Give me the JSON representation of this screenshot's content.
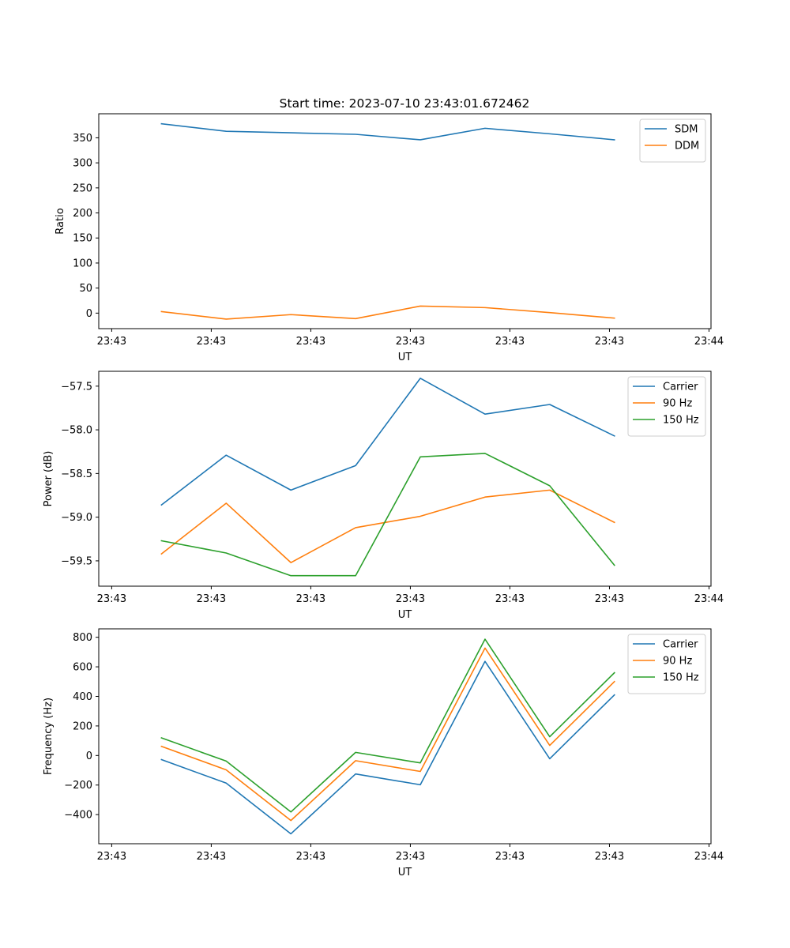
{
  "figure": {
    "title": "Start time: 2023-07-10 23:43:01.672462"
  },
  "chart_data": [
    {
      "type": "line",
      "title": "Start time: 2023-07-10 23:43:01.672462",
      "xlabel": "UT",
      "ylabel": "Ratio",
      "x_tick_labels": [
        "23:43",
        "23:43",
        "23:43",
        "23:43",
        "23:43",
        "23:43",
        "23:44"
      ],
      "x_tick_positions": [
        0,
        1,
        2,
        3,
        4,
        5,
        6
      ],
      "x_points": [
        0.5,
        1.15,
        1.8,
        2.45,
        3.1,
        3.75,
        4.4,
        5.05
      ],
      "xlim": [
        -0.13,
        6.02
      ],
      "ylim": [
        -31,
        398
      ],
      "y_ticks": [
        0,
        50,
        100,
        150,
        200,
        250,
        300,
        350
      ],
      "grid": false,
      "legend_position": "top-right",
      "series": [
        {
          "name": "SDM",
          "color": "#1f77b4",
          "values": [
            378,
            363,
            360,
            357,
            346,
            369,
            358,
            346
          ]
        },
        {
          "name": "DDM",
          "color": "#ff7f0e",
          "values": [
            3,
            -12,
            -3,
            -11,
            14,
            11,
            1,
            -10
          ]
        }
      ]
    },
    {
      "type": "line",
      "title": "",
      "xlabel": "UT",
      "ylabel": "Power (dB)",
      "x_tick_labels": [
        "23:43",
        "23:43",
        "23:43",
        "23:43",
        "23:43",
        "23:43",
        "23:44"
      ],
      "x_tick_positions": [
        0,
        1,
        2,
        3,
        4,
        5,
        6
      ],
      "x_points": [
        0.5,
        1.15,
        1.8,
        2.45,
        3.1,
        3.75,
        4.4,
        5.05
      ],
      "xlim": [
        -0.13,
        6.02
      ],
      "ylim": [
        -59.79,
        -57.33
      ],
      "y_ticks": [
        -59.5,
        -59.0,
        -58.5,
        -58.0,
        -57.5
      ],
      "y_tick_labels": [
        "−59.5",
        "−59.0",
        "−58.5",
        "−58.0",
        "−57.5"
      ],
      "grid": false,
      "legend_position": "top-right",
      "series": [
        {
          "name": "Carrier",
          "color": "#1f77b4",
          "values": [
            -58.86,
            -58.29,
            -58.69,
            -58.41,
            -57.41,
            -57.82,
            -57.71,
            -58.07
          ]
        },
        {
          "name": "90 Hz",
          "color": "#ff7f0e",
          "values": [
            -59.42,
            -58.84,
            -59.52,
            -59.12,
            -58.99,
            -58.77,
            -58.69,
            -59.06
          ]
        },
        {
          "name": "150 Hz",
          "color": "#2ca02c",
          "values": [
            -59.27,
            -59.41,
            -59.67,
            -59.67,
            -58.31,
            -58.27,
            -58.64,
            -59.55
          ]
        }
      ]
    },
    {
      "type": "line",
      "title": "",
      "xlabel": "UT",
      "ylabel": "Frequency (Hz)",
      "x_tick_labels": [
        "23:43",
        "23:43",
        "23:43",
        "23:43",
        "23:43",
        "23:43",
        "23:44"
      ],
      "x_tick_positions": [
        0,
        1,
        2,
        3,
        4,
        5,
        6
      ],
      "x_points": [
        0.5,
        1.15,
        1.8,
        2.45,
        3.1,
        3.75,
        4.4,
        5.05
      ],
      "xlim": [
        -0.13,
        6.02
      ],
      "ylim": [
        -597,
        857
      ],
      "y_ticks": [
        -400,
        -200,
        0,
        200,
        400,
        600,
        800
      ],
      "y_tick_labels": [
        "−400",
        "−200",
        "0",
        "200",
        "400",
        "600",
        "800"
      ],
      "grid": false,
      "legend_position": "top-right",
      "series": [
        {
          "name": "Carrier",
          "color": "#1f77b4",
          "values": [
            -28,
            -187,
            -530,
            -125,
            -198,
            637,
            -22,
            410
          ]
        },
        {
          "name": "90 Hz",
          "color": "#ff7f0e",
          "values": [
            62,
            -97,
            -440,
            -35,
            -108,
            727,
            68,
            500
          ]
        },
        {
          "name": "150 Hz",
          "color": "#2ca02c",
          "values": [
            119,
            -38,
            -382,
            21,
            -50,
            787,
            127,
            560
          ]
        }
      ]
    }
  ]
}
